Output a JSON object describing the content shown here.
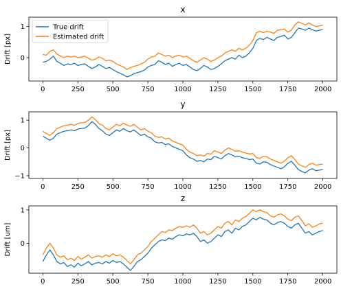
{
  "chart_data": [
    {
      "type": "line",
      "title": "x",
      "xlabel": "",
      "ylabel": "Drift [px]",
      "xlim": [
        -100,
        2100
      ],
      "ylim": [
        -0.75,
        1.3
      ],
      "xticks": [
        0,
        250,
        500,
        750,
        1000,
        1250,
        1500,
        1750,
        2000
      ],
      "yticks": [
        -1,
        0,
        1
      ],
      "ytick_labels": [
        "",
        "0",
        "1"
      ],
      "legend": {
        "placement": "top-left",
        "entries": [
          "True drift",
          "Estimated drift"
        ]
      },
      "series": [
        {
          "name": "True drift",
          "color": "#1f77b4",
          "x": [
            0,
            25,
            50,
            75,
            100,
            125,
            150,
            175,
            200,
            225,
            250,
            275,
            300,
            325,
            350,
            375,
            400,
            425,
            450,
            475,
            500,
            525,
            550,
            575,
            600,
            625,
            650,
            675,
            700,
            725,
            750,
            775,
            800,
            825,
            850,
            875,
            900,
            925,
            950,
            975,
            1000,
            1025,
            1050,
            1075,
            1100,
            1125,
            1150,
            1175,
            1200,
            1225,
            1250,
            1275,
            1300,
            1325,
            1350,
            1375,
            1400,
            1425,
            1450,
            1475,
            1500,
            1525,
            1550,
            1575,
            1600,
            1625,
            1650,
            1675,
            1700,
            1725,
            1750,
            1775,
            1800,
            1825,
            1850,
            1875,
            1900,
            1925,
            1950,
            1975,
            2000
          ],
          "y": [
            -0.15,
            -0.12,
            -0.05,
            0.05,
            -0.12,
            -0.18,
            -0.25,
            -0.2,
            -0.22,
            -0.18,
            -0.25,
            -0.22,
            -0.2,
            -0.28,
            -0.35,
            -0.3,
            -0.22,
            -0.28,
            -0.35,
            -0.32,
            -0.38,
            -0.45,
            -0.5,
            -0.55,
            -0.62,
            -0.58,
            -0.52,
            -0.48,
            -0.45,
            -0.4,
            -0.3,
            -0.25,
            -0.22,
            -0.1,
            -0.15,
            -0.22,
            -0.18,
            -0.28,
            -0.22,
            -0.18,
            -0.25,
            -0.22,
            -0.3,
            -0.38,
            -0.42,
            -0.35,
            -0.25,
            -0.3,
            -0.38,
            -0.35,
            -0.28,
            -0.2,
            -0.1,
            -0.05,
            0.0,
            -0.05,
            0.08,
            0.0,
            0.05,
            0.15,
            0.3,
            0.55,
            0.62,
            0.58,
            0.65,
            0.6,
            0.55,
            0.65,
            0.68,
            0.72,
            0.6,
            0.65,
            0.8,
            0.95,
            0.92,
            0.88,
            0.95,
            0.9,
            0.85,
            0.88,
            0.9
          ]
        },
        {
          "name": "Estimated drift",
          "color": "#ff7f0e",
          "x": [
            0,
            25,
            50,
            75,
            100,
            125,
            150,
            175,
            200,
            225,
            250,
            275,
            300,
            325,
            350,
            375,
            400,
            425,
            450,
            475,
            500,
            525,
            550,
            575,
            600,
            625,
            650,
            675,
            700,
            725,
            750,
            775,
            800,
            825,
            850,
            875,
            900,
            925,
            950,
            975,
            1000,
            1025,
            1050,
            1075,
            1100,
            1125,
            1150,
            1175,
            1200,
            1225,
            1250,
            1275,
            1300,
            1325,
            1350,
            1375,
            1400,
            1425,
            1450,
            1475,
            1500,
            1525,
            1550,
            1575,
            1600,
            1625,
            1650,
            1675,
            1700,
            1725,
            1750,
            1775,
            1800,
            1825,
            1850,
            1875,
            1900,
            1925,
            1950,
            1975,
            2000
          ],
          "y": [
            0.1,
            0.08,
            0.2,
            0.25,
            0.12,
            0.05,
            0.0,
            0.05,
            0.02,
            0.05,
            0.0,
            0.02,
            0.05,
            -0.02,
            -0.08,
            -0.05,
            0.02,
            -0.02,
            -0.1,
            -0.08,
            -0.12,
            -0.2,
            -0.25,
            -0.3,
            -0.38,
            -0.32,
            -0.28,
            -0.25,
            -0.2,
            -0.15,
            -0.05,
            0.02,
            0.05,
            0.15,
            0.1,
            0.05,
            0.08,
            0.0,
            0.05,
            0.08,
            0.02,
            0.05,
            -0.02,
            -0.1,
            -0.15,
            -0.08,
            0.0,
            -0.05,
            -0.12,
            -0.08,
            0.0,
            0.05,
            0.15,
            0.2,
            0.25,
            0.2,
            0.3,
            0.25,
            0.3,
            0.4,
            0.55,
            0.8,
            0.85,
            0.8,
            0.85,
            0.82,
            0.78,
            0.88,
            0.9,
            0.92,
            0.82,
            0.88,
            1.05,
            1.15,
            1.1,
            1.05,
            1.12,
            1.05,
            1.0,
            1.02,
            1.05
          ]
        }
      ]
    },
    {
      "type": "line",
      "title": "y",
      "xlabel": "",
      "ylabel": "Drift [px]",
      "xlim": [
        -100,
        2100
      ],
      "ylim": [
        -1.1,
        1.3
      ],
      "xticks": [
        0,
        250,
        500,
        750,
        1000,
        1250,
        1500,
        1750,
        2000
      ],
      "yticks": [
        -1,
        0,
        1
      ],
      "ytick_labels": [
        "−1",
        "0",
        "1"
      ],
      "series": [
        {
          "name": "True drift",
          "color": "#1f77b4",
          "x": [
            0,
            25,
            50,
            75,
            100,
            125,
            150,
            175,
            200,
            225,
            250,
            275,
            300,
            325,
            350,
            375,
            400,
            425,
            450,
            475,
            500,
            525,
            550,
            575,
            600,
            625,
            650,
            675,
            700,
            725,
            750,
            775,
            800,
            825,
            850,
            875,
            900,
            925,
            950,
            975,
            1000,
            1025,
            1050,
            1075,
            1100,
            1125,
            1150,
            1175,
            1200,
            1225,
            1250,
            1275,
            1300,
            1325,
            1350,
            1375,
            1400,
            1425,
            1450,
            1475,
            1500,
            1525,
            1550,
            1575,
            1600,
            1625,
            1650,
            1675,
            1700,
            1725,
            1750,
            1775,
            1800,
            1825,
            1850,
            1875,
            1900,
            1925,
            1950,
            1975,
            2000
          ],
          "y": [
            0.42,
            0.35,
            0.28,
            0.35,
            0.5,
            0.55,
            0.6,
            0.62,
            0.65,
            0.62,
            0.68,
            0.7,
            0.72,
            0.8,
            0.95,
            0.85,
            0.7,
            0.62,
            0.5,
            0.45,
            0.55,
            0.65,
            0.6,
            0.7,
            0.62,
            0.58,
            0.65,
            0.55,
            0.45,
            0.5,
            0.4,
            0.35,
            0.22,
            0.18,
            0.2,
            0.12,
            0.15,
            0.05,
            0.0,
            -0.05,
            -0.1,
            -0.25,
            -0.35,
            -0.4,
            -0.48,
            -0.45,
            -0.5,
            -0.4,
            -0.42,
            -0.3,
            -0.35,
            -0.4,
            -0.28,
            -0.2,
            -0.25,
            -0.32,
            -0.3,
            -0.35,
            -0.38,
            -0.42,
            -0.4,
            -0.55,
            -0.58,
            -0.5,
            -0.52,
            -0.6,
            -0.65,
            -0.7,
            -0.75,
            -0.68,
            -0.55,
            -0.48,
            -0.62,
            -0.78,
            -0.85,
            -0.9,
            -0.8,
            -0.75,
            -0.82,
            -0.8,
            -0.78
          ]
        },
        {
          "name": "Estimated drift",
          "color": "#ff7f0e",
          "x": [
            0,
            25,
            50,
            75,
            100,
            125,
            150,
            175,
            200,
            225,
            250,
            275,
            300,
            325,
            350,
            375,
            400,
            425,
            450,
            475,
            500,
            525,
            550,
            575,
            600,
            625,
            650,
            675,
            700,
            725,
            750,
            775,
            800,
            825,
            850,
            875,
            900,
            925,
            950,
            975,
            1000,
            1025,
            1050,
            1075,
            1100,
            1125,
            1150,
            1175,
            1200,
            1225,
            1250,
            1275,
            1300,
            1325,
            1350,
            1375,
            1400,
            1425,
            1450,
            1475,
            1500,
            1525,
            1550,
            1575,
            1600,
            1625,
            1650,
            1675,
            1700,
            1725,
            1750,
            1775,
            1800,
            1825,
            1850,
            1875,
            1900,
            1925,
            1950,
            1975,
            2000
          ],
          "y": [
            0.6,
            0.52,
            0.45,
            0.55,
            0.7,
            0.75,
            0.8,
            0.82,
            0.85,
            0.82,
            0.88,
            0.9,
            0.92,
            1.0,
            1.12,
            1.02,
            0.88,
            0.82,
            0.7,
            0.65,
            0.75,
            0.85,
            0.8,
            0.9,
            0.82,
            0.78,
            0.85,
            0.75,
            0.65,
            0.7,
            0.6,
            0.55,
            0.42,
            0.38,
            0.4,
            0.32,
            0.35,
            0.25,
            0.2,
            0.15,
            0.1,
            -0.05,
            -0.15,
            -0.2,
            -0.28,
            -0.25,
            -0.3,
            -0.2,
            -0.22,
            -0.1,
            -0.15,
            -0.2,
            -0.08,
            0.0,
            -0.05,
            -0.12,
            -0.1,
            -0.15,
            -0.18,
            -0.22,
            -0.2,
            -0.35,
            -0.38,
            -0.3,
            -0.32,
            -0.4,
            -0.45,
            -0.5,
            -0.55,
            -0.48,
            -0.35,
            -0.28,
            -0.42,
            -0.58,
            -0.65,
            -0.7,
            -0.6,
            -0.55,
            -0.62,
            -0.6,
            -0.58
          ]
        }
      ]
    },
    {
      "type": "line",
      "title": "z",
      "xlabel": "",
      "ylabel": "Drift [um]",
      "xlim": [
        -100,
        2100
      ],
      "ylim": [
        -0.9,
        1.12
      ],
      "xticks": [
        0,
        250,
        500,
        750,
        1000,
        1250,
        1500,
        1750,
        2000
      ],
      "yticks": [
        -1,
        0,
        1
      ],
      "ytick_labels": [
        "",
        "0",
        "1"
      ],
      "series": [
        {
          "name": "True drift",
          "color": "#1f77b4",
          "x": [
            0,
            25,
            50,
            75,
            100,
            125,
            150,
            175,
            200,
            225,
            250,
            275,
            300,
            325,
            350,
            375,
            400,
            425,
            450,
            475,
            500,
            525,
            550,
            575,
            600,
            625,
            650,
            675,
            700,
            725,
            750,
            775,
            800,
            825,
            850,
            875,
            900,
            925,
            950,
            975,
            1000,
            1025,
            1050,
            1075,
            1100,
            1125,
            1150,
            1175,
            1200,
            1225,
            1250,
            1275,
            1300,
            1325,
            1350,
            1375,
            1400,
            1425,
            1450,
            1475,
            1500,
            1525,
            1550,
            1575,
            1600,
            1625,
            1650,
            1675,
            1700,
            1725,
            1750,
            1775,
            1800,
            1825,
            1850,
            1875,
            1900,
            1925,
            1950,
            1975,
            2000
          ],
          "y": [
            -0.55,
            -0.35,
            -0.2,
            -0.35,
            -0.55,
            -0.62,
            -0.58,
            -0.7,
            -0.65,
            -0.72,
            -0.6,
            -0.68,
            -0.62,
            -0.55,
            -0.65,
            -0.6,
            -0.58,
            -0.62,
            -0.55,
            -0.6,
            -0.52,
            -0.58,
            -0.55,
            -0.62,
            -0.72,
            -0.82,
            -0.7,
            -0.55,
            -0.5,
            -0.4,
            -0.3,
            -0.15,
            -0.05,
            0.05,
            0.1,
            0.08,
            0.15,
            0.12,
            0.2,
            0.25,
            0.22,
            0.28,
            0.25,
            0.3,
            0.2,
            0.05,
            0.1,
            0.0,
            0.05,
            0.15,
            0.25,
            0.2,
            0.35,
            0.4,
            0.3,
            0.45,
            0.4,
            0.5,
            0.55,
            0.65,
            0.75,
            0.7,
            0.78,
            0.72,
            0.7,
            0.6,
            0.55,
            0.62,
            0.65,
            0.6,
            0.5,
            0.45,
            0.55,
            0.6,
            0.45,
            0.3,
            0.35,
            0.25,
            0.3,
            0.35,
            0.38
          ]
        },
        {
          "name": "Estimated drift",
          "color": "#ff7f0e",
          "x": [
            0,
            25,
            50,
            75,
            100,
            125,
            150,
            175,
            200,
            225,
            250,
            275,
            300,
            325,
            350,
            375,
            400,
            425,
            450,
            475,
            500,
            525,
            550,
            575,
            600,
            625,
            650,
            675,
            700,
            725,
            750,
            775,
            800,
            825,
            850,
            875,
            900,
            925,
            950,
            975,
            1000,
            1025,
            1050,
            1075,
            1100,
            1125,
            1150,
            1175,
            1200,
            1225,
            1250,
            1275,
            1300,
            1325,
            1350,
            1375,
            1400,
            1425,
            1450,
            1475,
            1500,
            1525,
            1550,
            1575,
            1600,
            1625,
            1650,
            1675,
            1700,
            1725,
            1750,
            1775,
            1800,
            1825,
            1850,
            1875,
            1900,
            1925,
            1950,
            1975,
            2000
          ],
          "y": [
            -0.35,
            -0.15,
            0.0,
            -0.15,
            -0.35,
            -0.42,
            -0.38,
            -0.5,
            -0.45,
            -0.52,
            -0.4,
            -0.48,
            -0.42,
            -0.35,
            -0.45,
            -0.4,
            -0.38,
            -0.42,
            -0.35,
            -0.4,
            -0.32,
            -0.38,
            -0.35,
            -0.42,
            -0.52,
            -0.62,
            -0.5,
            -0.35,
            -0.3,
            -0.2,
            -0.1,
            0.05,
            0.15,
            0.25,
            0.35,
            0.32,
            0.4,
            0.38,
            0.45,
            0.5,
            0.48,
            0.52,
            0.48,
            0.55,
            0.45,
            0.3,
            0.35,
            0.25,
            0.3,
            0.4,
            0.5,
            0.45,
            0.6,
            0.65,
            0.55,
            0.7,
            0.65,
            0.75,
            0.8,
            0.9,
            1.0,
            0.95,
            1.0,
            0.95,
            0.92,
            0.82,
            0.78,
            0.85,
            0.88,
            0.82,
            0.72,
            0.68,
            0.78,
            0.82,
            0.68,
            0.52,
            0.58,
            0.48,
            0.52,
            0.58,
            0.6
          ]
        }
      ]
    }
  ]
}
